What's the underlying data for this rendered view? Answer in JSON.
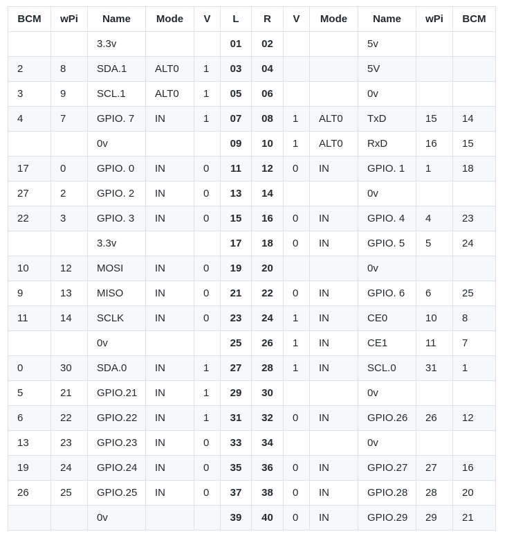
{
  "headers": [
    "BCM",
    "wPi",
    "Name",
    "Mode",
    "V",
    "L",
    "R",
    "V",
    "Mode",
    "Name",
    "wPi",
    "BCM"
  ],
  "rows": [
    [
      "",
      "",
      "3.3v",
      "",
      "",
      "01",
      "02",
      "",
      "",
      "5v",
      "",
      ""
    ],
    [
      "2",
      "8",
      "SDA.1",
      "ALT0",
      "1",
      "03",
      "04",
      "",
      "",
      "5V",
      "",
      ""
    ],
    [
      "3",
      "9",
      "SCL.1",
      "ALT0",
      "1",
      "05",
      "06",
      "",
      "",
      "0v",
      "",
      ""
    ],
    [
      "4",
      "7",
      "GPIO. 7",
      "IN",
      "1",
      "07",
      "08",
      "1",
      "ALT0",
      "TxD",
      "15",
      "14"
    ],
    [
      "",
      "",
      "0v",
      "",
      "",
      "09",
      "10",
      "1",
      "ALT0",
      "RxD",
      "16",
      "15"
    ],
    [
      "17",
      "0",
      "GPIO. 0",
      "IN",
      "0",
      "11",
      "12",
      "0",
      "IN",
      "GPIO. 1",
      "1",
      "18"
    ],
    [
      "27",
      "2",
      "GPIO. 2",
      "IN",
      "0",
      "13",
      "14",
      "",
      "",
      "0v",
      "",
      ""
    ],
    [
      "22",
      "3",
      "GPIO. 3",
      "IN",
      "0",
      "15",
      "16",
      "0",
      "IN",
      "GPIO. 4",
      "4",
      "23"
    ],
    [
      "",
      "",
      "3.3v",
      "",
      "",
      "17",
      "18",
      "0",
      "IN",
      "GPIO. 5",
      "5",
      "24"
    ],
    [
      "10",
      "12",
      "MOSI",
      "IN",
      "0",
      "19",
      "20",
      "",
      "",
      "0v",
      "",
      ""
    ],
    [
      "9",
      "13",
      "MISO",
      "IN",
      "0",
      "21",
      "22",
      "0",
      "IN",
      "GPIO. 6",
      "6",
      "25"
    ],
    [
      "11",
      "14",
      "SCLK",
      "IN",
      "0",
      "23",
      "24",
      "1",
      "IN",
      "CE0",
      "10",
      "8"
    ],
    [
      "",
      "",
      "0v",
      "",
      "",
      "25",
      "26",
      "1",
      "IN",
      "CE1",
      "11",
      "7"
    ],
    [
      "0",
      "30",
      "SDA.0",
      "IN",
      "1",
      "27",
      "28",
      "1",
      "IN",
      "SCL.0",
      "31",
      "1"
    ],
    [
      "5",
      "21",
      "GPIO.21",
      "IN",
      "1",
      "29",
      "30",
      "",
      "",
      "0v",
      "",
      ""
    ],
    [
      "6",
      "22",
      "GPIO.22",
      "IN",
      "1",
      "31",
      "32",
      "0",
      "IN",
      "GPIO.26",
      "26",
      "12"
    ],
    [
      "13",
      "23",
      "GPIO.23",
      "IN",
      "0",
      "33",
      "34",
      "",
      "",
      "0v",
      "",
      ""
    ],
    [
      "19",
      "24",
      "GPIO.24",
      "IN",
      "0",
      "35",
      "36",
      "0",
      "IN",
      "GPIO.27",
      "27",
      "16"
    ],
    [
      "26",
      "25",
      "GPIO.25",
      "IN",
      "0",
      "37",
      "38",
      "0",
      "IN",
      "GPIO.28",
      "28",
      "20"
    ],
    [
      "",
      "",
      "0v",
      "",
      "",
      "39",
      "40",
      "0",
      "IN",
      "GPIO.29",
      "29",
      "21"
    ]
  ]
}
